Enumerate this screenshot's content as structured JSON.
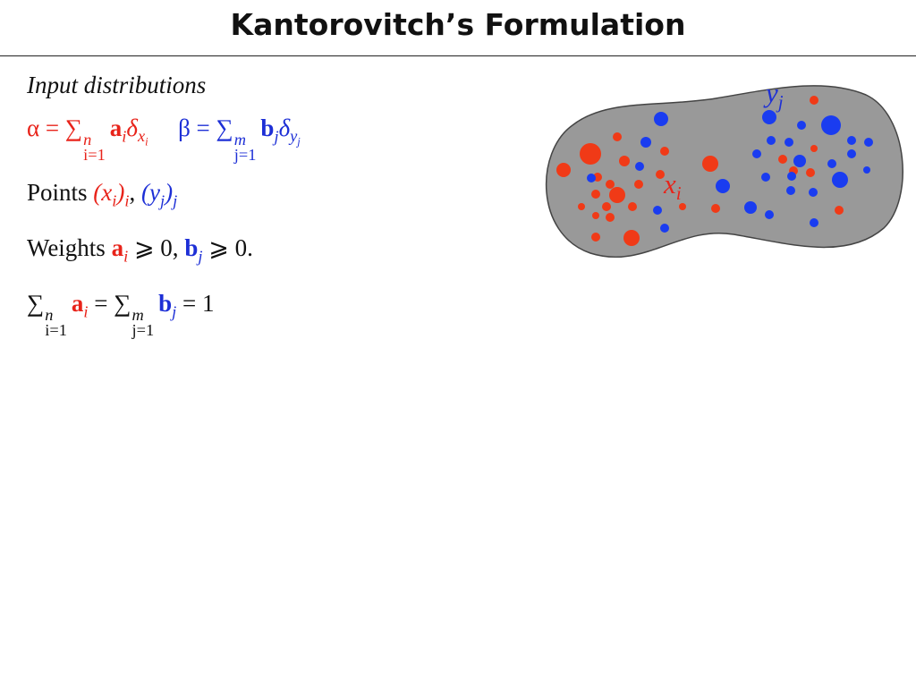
{
  "slide": {
    "title": "Kantorovitch’s Formulation",
    "heading": "Input distributions",
    "alpha_formula": [
      "α = ∑",
      "n",
      "i=1",
      "a",
      "i",
      "δ",
      "x",
      "i"
    ],
    "beta_formula": [
      "β = ∑",
      "m",
      "j=1",
      "b",
      "j",
      "δ",
      "y",
      "j"
    ],
    "points_line": [
      "Points",
      "(x",
      "i",
      ")",
      "i",
      ",",
      "(y",
      "j",
      ")",
      "j"
    ],
    "weights_line": [
      "Weights",
      "a",
      "i",
      "⩾ 0,",
      "b",
      "j",
      "⩾ 0."
    ],
    "sum_line": [
      "∑",
      "n",
      "i=1",
      "a",
      "i",
      "= ∑",
      "m",
      "j=1",
      "b",
      "j",
      "= 1"
    ],
    "figure": {
      "label_y": [
        "y",
        "j"
      ],
      "label_x": [
        "x",
        "i"
      ]
    }
  }
}
